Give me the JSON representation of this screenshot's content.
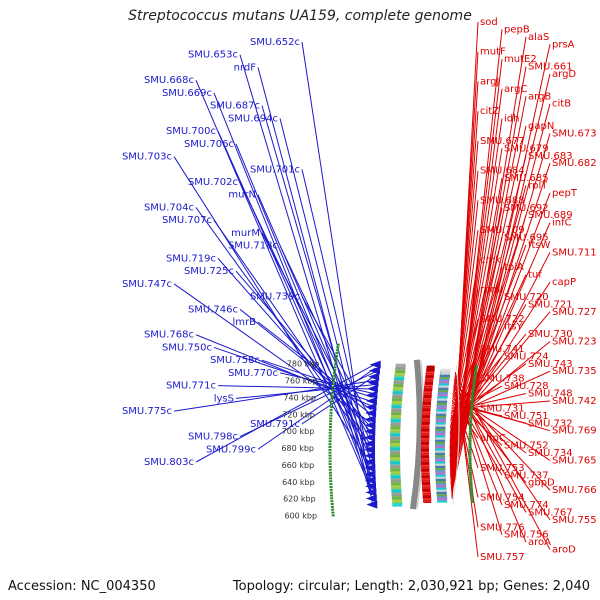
{
  "title": "Streptococcus mutans UA159, complete genome",
  "footer": {
    "accession": "Accession: NC_004350",
    "summary": "Topology: circular; Length: 2,030,921 bp; Genes: 2,040"
  },
  "colors": {
    "left_labels": "#1a1acc",
    "right_labels": "#dd0000",
    "backbone": "#888888",
    "tick_dots": "#2a8a2a"
  },
  "scale_ticks": [
    "600 kbp",
    "620 kbp",
    "640 kbp",
    "660 kbp",
    "680 kbp",
    "700 kbp",
    "720 kbp",
    "740 kbp",
    "760 kbp",
    "780 kbp"
  ],
  "left_genes": [
    "SMU.652c",
    "SMU.653c",
    "nrdF",
    "SMU.668c",
    "SMU.669c",
    "SMU.687c",
    "SMU.694c",
    "SMU.700c",
    "SMU.706c",
    "SMU.703c",
    "SMU.701c",
    "SMU.702c",
    "murN",
    "SMU.704c",
    "SMU.707c",
    "murM",
    "SMU.718c",
    "SMU.719c",
    "SMU.725c",
    "SMU.747c",
    "SMU.739c",
    "SMU.746c",
    "lmrB",
    "SMU.768c",
    "SMU.750c",
    "SMU.758c",
    "SMU.770c",
    "SMU.771c",
    "lysS",
    "SMU.775c",
    "SMU.791c",
    "SMU.798c",
    "SMU.799c",
    "SMU.803c"
  ],
  "right_genes": [
    "sod",
    "pepB",
    "alaS",
    "prsA",
    "mutF",
    "mutE2",
    "SMU.661",
    "argD",
    "argJ",
    "argC",
    "argB",
    "citB",
    "citZ",
    "idh",
    "gapN",
    "SMU.673",
    "SMU.677",
    "SMU.679",
    "SMU.683",
    "SMU.682",
    "SMU.684",
    "SMU.685",
    "rplT",
    "pepT",
    "SMU.688",
    "SMU.692",
    "SMU.689",
    "infC",
    "SMU.709",
    "SMU.695",
    "ftsW",
    "SMU.711",
    "cmk",
    "tpiA",
    "tuf",
    "capP",
    "rpmI",
    "SMU.720",
    "SMU.721",
    "SMU.727",
    "SMU.722",
    "ftsY",
    "SMU.730",
    "SMU.723",
    "SMU.741",
    "SMU.724",
    "SMU.743",
    "SMU.735",
    "SMU.738",
    "SMU.728",
    "SMU.748",
    "SMU.742",
    "SMU.731",
    "SMU.751",
    "SMU.732",
    "SMU.769",
    "ahpC",
    "SMU.752",
    "SMU.734",
    "SMU.765",
    "SMU.753",
    "SMU.737",
    "gbpD",
    "SMU.766",
    "SMU.754",
    "SMU.774",
    "SMU.767",
    "SMU.755",
    "SMU.776",
    "SMU.756",
    "aroA",
    "aroD",
    "SMU.757"
  ]
}
